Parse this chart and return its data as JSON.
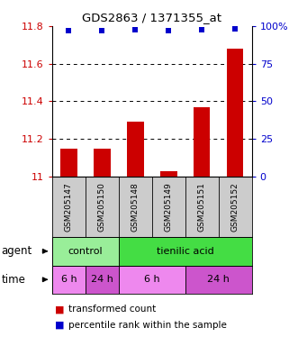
{
  "title": "GDS2863 / 1371355_at",
  "samples": [
    "GSM205147",
    "GSM205150",
    "GSM205148",
    "GSM205149",
    "GSM205151",
    "GSM205152"
  ],
  "bar_values": [
    11.15,
    11.15,
    11.29,
    11.03,
    11.37,
    11.68
  ],
  "dot_values": [
    97,
    97,
    97.5,
    97,
    97.5,
    98
  ],
  "bar_color": "#cc0000",
  "dot_color": "#0000cc",
  "ylim_left": [
    11.0,
    11.8
  ],
  "ylim_right": [
    0,
    100
  ],
  "yticks_left": [
    11.0,
    11.2,
    11.4,
    11.6,
    11.8
  ],
  "ytick_labels_left": [
    "11",
    "11.2",
    "11.4",
    "11.6",
    "11.8"
  ],
  "yticks_right": [
    0,
    25,
    50,
    75,
    100
  ],
  "ytick_labels_right": [
    "0",
    "25",
    "50",
    "75",
    "100%"
  ],
  "gridlines_at": [
    11.2,
    11.4,
    11.6
  ],
  "agent_labels": [
    {
      "text": "control",
      "span": [
        0,
        2
      ],
      "color": "#99ee99"
    },
    {
      "text": "tienilic acid",
      "span": [
        2,
        6
      ],
      "color": "#44dd44"
    }
  ],
  "time_labels": [
    {
      "text": "6 h",
      "span": [
        0,
        1
      ],
      "color": "#ee88ee"
    },
    {
      "text": "24 h",
      "span": [
        1,
        2
      ],
      "color": "#cc55cc"
    },
    {
      "text": "6 h",
      "span": [
        2,
        4
      ],
      "color": "#ee88ee"
    },
    {
      "text": "24 h",
      "span": [
        4,
        6
      ],
      "color": "#cc55cc"
    }
  ],
  "legend_bar_label": "transformed count",
  "legend_dot_label": "percentile rank within the sample",
  "agent_row_label": "agent",
  "time_row_label": "time",
  "sample_box_color": "#cccccc",
  "bar_width": 0.5
}
